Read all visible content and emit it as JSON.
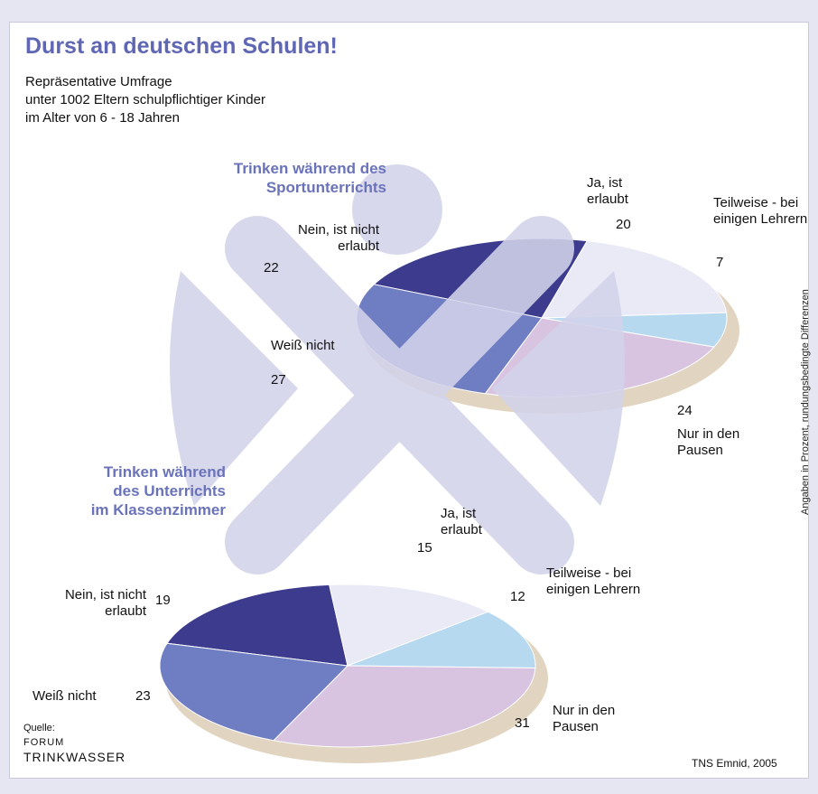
{
  "title": "Durst an deutschen Schulen!",
  "subtitle": [
    "Repräsentative Umfrage",
    "unter 1002 Eltern schulpflichtiger Kinder",
    "im Alter von 6 - 18 Jahren"
  ],
  "note": "Angaben in Prozent, rundungsbedingte Differenzen",
  "source": [
    "Quelle:",
    "FORUM",
    "TRINKWASSER"
  ],
  "credit": "TNS Emnid, 2005",
  "chart_data": [
    {
      "type": "pie",
      "title": [
        "Trinken während des",
        "Sportunterrichts"
      ],
      "categories": [
        "Nein, ist nicht erlaubt",
        "Ja, ist erlaubt",
        "Teilweise - bei einigen Lehrern",
        "Nur in den Pausen",
        "Weiß nicht"
      ],
      "values": [
        22,
        20,
        7,
        24,
        27
      ],
      "colors": [
        "#3d3b8e",
        "#e9eaf6",
        "#b7d9f0",
        "#d8c4e1",
        "#6f7ec3"
      ]
    },
    {
      "type": "pie",
      "title": [
        "Trinken während",
        "des Unterrichts",
        "im Klassenzimmer"
      ],
      "categories": [
        "Nein, ist nicht erlaubt",
        "Ja, ist erlaubt",
        "Teilweise - bei einigen Lehrern",
        "Nur in den Pausen",
        "Weiß nicht"
      ],
      "values": [
        19,
        15,
        12,
        31,
        23
      ],
      "colors": [
        "#3d3b8e",
        "#e9eaf6",
        "#b7d9f0",
        "#d8c4e1",
        "#6f7ec3"
      ]
    }
  ]
}
